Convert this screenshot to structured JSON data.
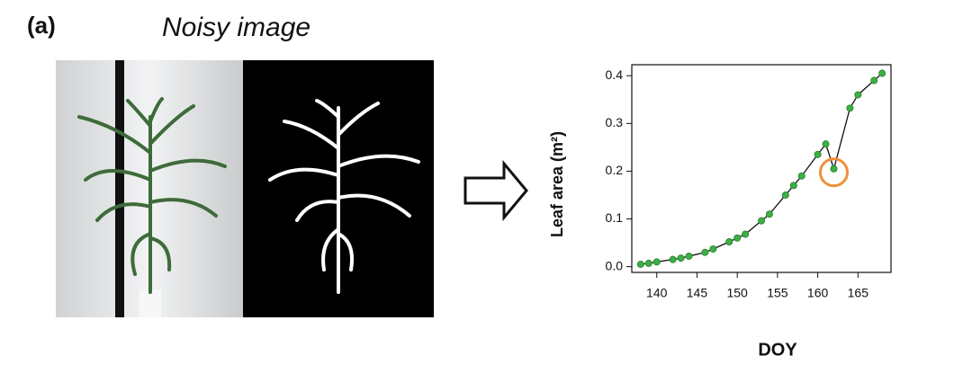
{
  "panel_label": "(a)",
  "image_title": "Noisy image",
  "chart_data": {
    "type": "line",
    "x": [
      138,
      139,
      140,
      142,
      143,
      144,
      146,
      147,
      149,
      150,
      151,
      153,
      154,
      156,
      157,
      158,
      160,
      161,
      162,
      164,
      165,
      167,
      168
    ],
    "values": [
      0.005,
      0.007,
      0.01,
      0.015,
      0.018,
      0.022,
      0.03,
      0.037,
      0.052,
      0.06,
      0.068,
      0.096,
      0.11,
      0.15,
      0.17,
      0.19,
      0.235,
      0.257,
      0.205,
      0.332,
      0.36,
      0.39,
      0.405
    ],
    "color": "#3cb043",
    "xlabel": "DOY",
    "ylabel": "Leaf area (m²)",
    "xlim": [
      136.9,
      169.1
    ],
    "ylim": [
      -0.012,
      0.423
    ],
    "xticks": [
      140,
      145,
      150,
      155,
      160,
      165
    ],
    "yticks": [
      {
        "value": 0,
        "label": "0.0"
      },
      0.1,
      0.2,
      0.3,
      0.4
    ]
  }
}
